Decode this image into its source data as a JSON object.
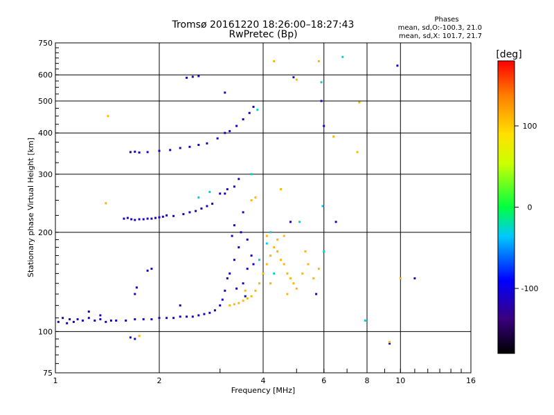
{
  "colors": {
    "series": "#1a1aff",
    "grid": "#000000",
    "background": "#ffffff"
  },
  "chart_data": {
    "type": "scatter",
    "title": "Tromsø 20161220 18:26:00–18:27:43",
    "subtitle": "RwPretec (Bp)",
    "xlabel": "Frequency [MHz]",
    "ylabel": "Stationary phase Virtual Height [km]",
    "x_scale": "log",
    "y_scale": "log",
    "xlim": [
      1,
      16
    ],
    "ylim": [
      75,
      750
    ],
    "xticks": [
      1,
      2,
      4,
      6,
      8,
      10,
      16
    ],
    "xtick_labels": [
      "1",
      "2",
      "4",
      "6",
      "8",
      "10",
      "16"
    ],
    "yticks": [
      75,
      100,
      200,
      300,
      400,
      500,
      600,
      750
    ],
    "ytick_labels": [
      "75",
      "100",
      "200",
      "300",
      "400",
      "500",
      "600",
      "750"
    ],
    "grid": true,
    "stats": {
      "heading": "Phases",
      "line_o": "mean, sd,O:-100.3, 21.0",
      "line_x": "mean, sd,X: 101.7, 21.7"
    },
    "colorbar": {
      "label": "[deg]",
      "range": [
        -180,
        180
      ],
      "ticks": [
        100,
        0,
        -100
      ],
      "tick_labels": [
        "100",
        "0",
        "-100"
      ],
      "colormap": "rainbow"
    },
    "series": [
      {
        "phase_deg": -110,
        "points": [
          {
            "x": 1.02,
            "y": 107
          },
          {
            "x": 1.05,
            "y": 110
          },
          {
            "x": 1.08,
            "y": 106
          },
          {
            "x": 1.1,
            "y": 109
          },
          {
            "x": 1.13,
            "y": 107
          },
          {
            "x": 1.16,
            "y": 109
          },
          {
            "x": 1.2,
            "y": 108
          },
          {
            "x": 1.25,
            "y": 110
          },
          {
            "x": 1.3,
            "y": 108
          },
          {
            "x": 1.35,
            "y": 109
          },
          {
            "x": 1.4,
            "y": 107
          },
          {
            "x": 1.45,
            "y": 108
          },
          {
            "x": 1.5,
            "y": 108
          },
          {
            "x": 1.6,
            "y": 108
          },
          {
            "x": 1.7,
            "y": 109
          },
          {
            "x": 1.8,
            "y": 109
          },
          {
            "x": 1.9,
            "y": 109
          },
          {
            "x": 2.0,
            "y": 110
          },
          {
            "x": 2.1,
            "y": 110
          },
          {
            "x": 2.2,
            "y": 110
          },
          {
            "x": 2.3,
            "y": 111
          },
          {
            "x": 2.4,
            "y": 111
          },
          {
            "x": 2.5,
            "y": 111
          },
          {
            "x": 2.6,
            "y": 112
          },
          {
            "x": 2.7,
            "y": 113
          },
          {
            "x": 2.8,
            "y": 114
          },
          {
            "x": 2.9,
            "y": 116
          },
          {
            "x": 3.0,
            "y": 120
          },
          {
            "x": 3.05,
            "y": 125
          },
          {
            "x": 3.1,
            "y": 133
          },
          {
            "x": 1.58,
            "y": 220
          },
          {
            "x": 1.62,
            "y": 221
          },
          {
            "x": 1.66,
            "y": 219
          },
          {
            "x": 1.7,
            "y": 218
          },
          {
            "x": 1.75,
            "y": 219
          },
          {
            "x": 1.8,
            "y": 219
          },
          {
            "x": 1.85,
            "y": 220
          },
          {
            "x": 1.9,
            "y": 220
          },
          {
            "x": 1.95,
            "y": 221
          },
          {
            "x": 2.0,
            "y": 222
          },
          {
            "x": 2.05,
            "y": 223
          },
          {
            "x": 2.1,
            "y": 225
          },
          {
            "x": 2.2,
            "y": 224
          },
          {
            "x": 2.35,
            "y": 227
          },
          {
            "x": 2.45,
            "y": 230
          },
          {
            "x": 2.55,
            "y": 232
          },
          {
            "x": 2.65,
            "y": 236
          },
          {
            "x": 2.75,
            "y": 240
          },
          {
            "x": 2.85,
            "y": 244
          },
          {
            "x": 3.0,
            "y": 262
          },
          {
            "x": 3.1,
            "y": 262
          },
          {
            "x": 3.15,
            "y": 270
          },
          {
            "x": 3.3,
            "y": 275
          },
          {
            "x": 3.4,
            "y": 290
          },
          {
            "x": 1.65,
            "y": 350
          },
          {
            "x": 1.7,
            "y": 351
          },
          {
            "x": 1.75,
            "y": 349
          },
          {
            "x": 1.85,
            "y": 350
          },
          {
            "x": 2.0,
            "y": 353
          },
          {
            "x": 2.15,
            "y": 355
          },
          {
            "x": 2.3,
            "y": 360
          },
          {
            "x": 2.45,
            "y": 363
          },
          {
            "x": 2.6,
            "y": 368
          },
          {
            "x": 2.75,
            "y": 372
          },
          {
            "x": 2.95,
            "y": 385
          },
          {
            "x": 3.1,
            "y": 400
          },
          {
            "x": 3.2,
            "y": 405
          },
          {
            "x": 3.35,
            "y": 420
          },
          {
            "x": 3.5,
            "y": 440
          },
          {
            "x": 3.65,
            "y": 460
          },
          {
            "x": 3.75,
            "y": 480
          },
          {
            "x": 2.4,
            "y": 588
          },
          {
            "x": 2.5,
            "y": 592
          },
          {
            "x": 2.6,
            "y": 595
          },
          {
            "x": 3.1,
            "y": 530
          },
          {
            "x": 1.65,
            "y": 96
          },
          {
            "x": 1.7,
            "y": 95
          },
          {
            "x": 1.85,
            "y": 153
          },
          {
            "x": 1.9,
            "y": 155
          },
          {
            "x": 1.7,
            "y": 130
          },
          {
            "x": 1.72,
            "y": 136
          },
          {
            "x": 1.25,
            "y": 115
          },
          {
            "x": 1.35,
            "y": 112
          },
          {
            "x": 2.3,
            "y": 120
          },
          {
            "x": 3.2,
            "y": 150
          },
          {
            "x": 3.3,
            "y": 165
          },
          {
            "x": 3.4,
            "y": 180
          },
          {
            "x": 3.5,
            "y": 140
          },
          {
            "x": 3.6,
            "y": 155
          },
          {
            "x": 3.7,
            "y": 170
          },
          {
            "x": 3.25,
            "y": 195
          },
          {
            "x": 3.45,
            "y": 200
          },
          {
            "x": 3.3,
            "y": 210
          },
          {
            "x": 3.5,
            "y": 230
          },
          {
            "x": 3.6,
            "y": 190
          },
          {
            "x": 3.75,
            "y": 160
          },
          {
            "x": 3.15,
            "y": 145
          },
          {
            "x": 3.35,
            "y": 135
          },
          {
            "x": 3.55,
            "y": 128
          },
          {
            "x": 5.9,
            "y": 500
          },
          {
            "x": 6.0,
            "y": 420
          },
          {
            "x": 4.9,
            "y": 590
          },
          {
            "x": 4.8,
            "y": 215
          },
          {
            "x": 5.7,
            "y": 130
          },
          {
            "x": 11.0,
            "y": 145
          },
          {
            "x": 9.8,
            "y": 640
          },
          {
            "x": 9.3,
            "y": 92
          },
          {
            "x": 6.5,
            "y": 215
          }
        ]
      },
      {
        "phase_deg": 110,
        "points": [
          {
            "x": 3.2,
            "y": 120
          },
          {
            "x": 3.3,
            "y": 121
          },
          {
            "x": 3.4,
            "y": 122
          },
          {
            "x": 3.5,
            "y": 124
          },
          {
            "x": 3.6,
            "y": 126
          },
          {
            "x": 3.7,
            "y": 128
          },
          {
            "x": 3.8,
            "y": 133
          },
          {
            "x": 3.9,
            "y": 140
          },
          {
            "x": 4.0,
            "y": 150
          },
          {
            "x": 4.1,
            "y": 160
          },
          {
            "x": 4.2,
            "y": 170
          },
          {
            "x": 4.3,
            "y": 180
          },
          {
            "x": 4.4,
            "y": 175
          },
          {
            "x": 4.5,
            "y": 165
          },
          {
            "x": 4.6,
            "y": 160
          },
          {
            "x": 4.7,
            "y": 150
          },
          {
            "x": 4.8,
            "y": 145
          },
          {
            "x": 4.9,
            "y": 140
          },
          {
            "x": 5.0,
            "y": 135
          },
          {
            "x": 5.2,
            "y": 150
          },
          {
            "x": 5.4,
            "y": 160
          },
          {
            "x": 5.6,
            "y": 145
          },
          {
            "x": 5.8,
            "y": 155
          },
          {
            "x": 4.2,
            "y": 140
          },
          {
            "x": 4.4,
            "y": 190
          },
          {
            "x": 4.6,
            "y": 195
          },
          {
            "x": 3.7,
            "y": 250
          },
          {
            "x": 3.8,
            "y": 255
          },
          {
            "x": 4.5,
            "y": 270
          },
          {
            "x": 4.1,
            "y": 195
          },
          {
            "x": 5.0,
            "y": 580
          },
          {
            "x": 5.8,
            "y": 660
          },
          {
            "x": 4.3,
            "y": 660
          },
          {
            "x": 7.5,
            "y": 350
          },
          {
            "x": 7.6,
            "y": 495
          },
          {
            "x": 1.42,
            "y": 450
          },
          {
            "x": 1.4,
            "y": 245
          },
          {
            "x": 1.75,
            "y": 97
          },
          {
            "x": 9.3,
            "y": 93
          },
          {
            "x": 10.0,
            "y": 145
          },
          {
            "x": 6.4,
            "y": 390
          },
          {
            "x": 5.9,
            "y": 570
          },
          {
            "x": 4.7,
            "y": 130
          },
          {
            "x": 5.3,
            "y": 175
          },
          {
            "x": 3.55,
            "y": 133
          }
        ]
      },
      {
        "phase_deg": -30,
        "points": [
          {
            "x": 3.9,
            "y": 165
          },
          {
            "x": 4.1,
            "y": 185
          },
          {
            "x": 4.3,
            "y": 150
          },
          {
            "x": 5.1,
            "y": 215
          },
          {
            "x": 6.0,
            "y": 175
          },
          {
            "x": 5.95,
            "y": 240
          },
          {
            "x": 7.9,
            "y": 108
          },
          {
            "x": 6.8,
            "y": 680
          },
          {
            "x": 3.85,
            "y": 470
          },
          {
            "x": 4.2,
            "y": 200
          },
          {
            "x": 5.9,
            "y": 570
          },
          {
            "x": 2.8,
            "y": 265
          },
          {
            "x": 2.6,
            "y": 255
          },
          {
            "x": 3.7,
            "y": 300
          }
        ]
      }
    ]
  }
}
